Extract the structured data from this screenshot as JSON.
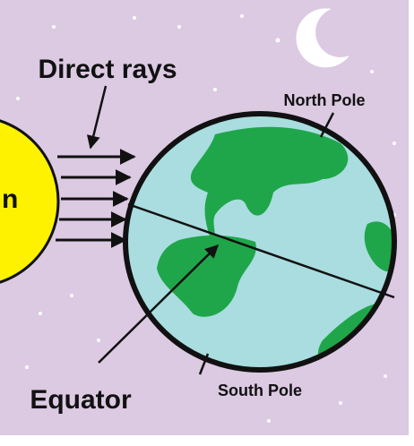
{
  "labels": {
    "sun": "n",
    "direct_rays": "Direct rays",
    "north_pole": "North Pole",
    "south_pole": "South Pole",
    "equator": "Equator"
  }
}
